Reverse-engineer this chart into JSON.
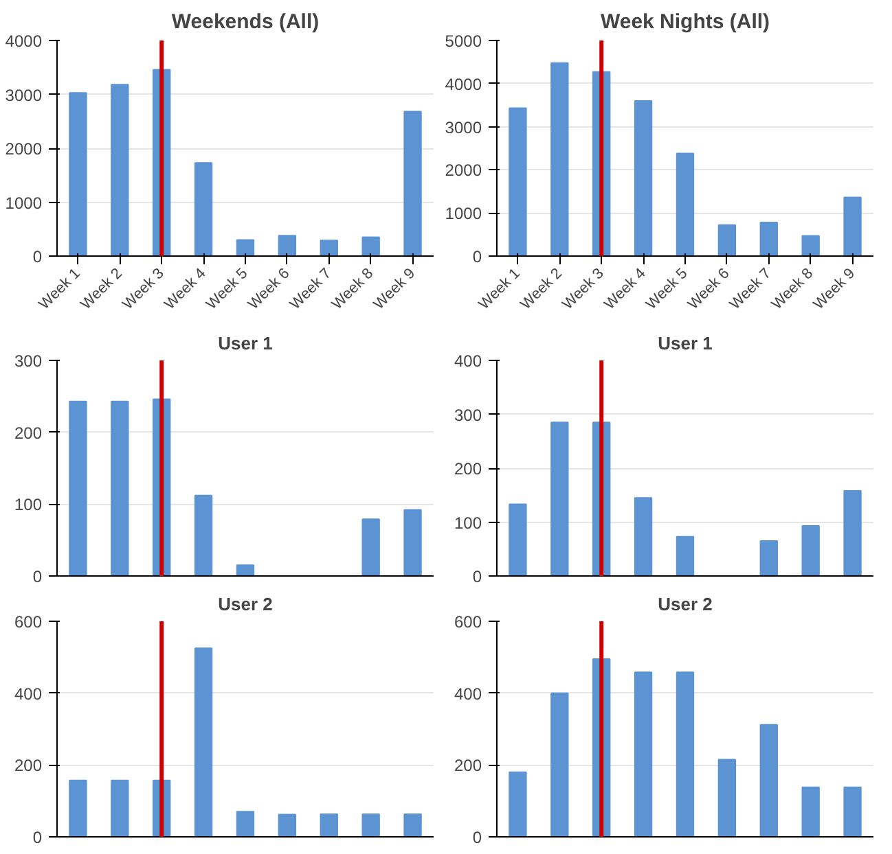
{
  "chart_data": [
    {
      "type": "bar",
      "title": "Weekends (All)",
      "categories": [
        "Week 1",
        "Week 2",
        "Week 3",
        "Week 4",
        "Week 5",
        "Week 6",
        "Week 7",
        "Week 8",
        "Week 9"
      ],
      "values": [
        3030,
        3180,
        3460,
        1730,
        300,
        380,
        290,
        350,
        2680
      ],
      "color": "#5b93d3",
      "ylim": [
        0,
        4000
      ],
      "yticks": [
        0,
        1000,
        2000,
        3000,
        4000
      ],
      "grid": "y",
      "ref_lines": [
        {
          "axis": "x",
          "value": "Week 3",
          "color": "#cc0000"
        }
      ]
    },
    {
      "type": "bar",
      "title": "Week Nights (All)",
      "categories": [
        "Week 1",
        "Week 2",
        "Week 3",
        "Week 4",
        "Week 5",
        "Week 6",
        "Week 7",
        "Week 8",
        "Week 9"
      ],
      "values": [
        3430,
        4480,
        4270,
        3600,
        2380,
        720,
        780,
        470,
        1360
      ],
      "color": "#5b93d3",
      "ylim": [
        0,
        5000
      ],
      "yticks": [
        0,
        1000,
        2000,
        3000,
        4000,
        5000
      ],
      "grid": "y",
      "ref_lines": [
        {
          "axis": "x",
          "value": "Week 3",
          "color": "#cc0000"
        }
      ]
    },
    {
      "type": "bar",
      "title": "User 1",
      "categories": [
        "Week 1",
        "Week 2",
        "Week 3",
        "Week 4",
        "Week 5",
        "Week 6",
        "Week 7",
        "Week 8",
        "Week 9"
      ],
      "values": [
        243,
        243,
        246,
        112,
        15,
        0,
        0,
        79,
        92
      ],
      "color": "#5b93d3",
      "ylim": [
        0,
        300
      ],
      "yticks": [
        0,
        100,
        200,
        300
      ],
      "grid": "y",
      "tick_labels": "y",
      "ref_lines": [
        {
          "axis": "x",
          "value": "Week 3",
          "color": "#cc0000"
        }
      ]
    },
    {
      "type": "bar",
      "title": "User 1",
      "categories": [
        "Week 1",
        "Week 2",
        "Week 3",
        "Week 4",
        "Week 5",
        "Week 6",
        "Week 7",
        "Week 8",
        "Week 9"
      ],
      "values": [
        133,
        285,
        285,
        145,
        73,
        0,
        65,
        93,
        158
      ],
      "color": "#5b93d3",
      "ylim": [
        0,
        400
      ],
      "yticks": [
        0,
        100,
        200,
        300,
        400
      ],
      "grid": "y",
      "tick_labels": "y",
      "ref_lines": [
        {
          "axis": "x",
          "value": "Week 3",
          "color": "#cc0000"
        }
      ]
    },
    {
      "type": "bar",
      "title": "User 2",
      "categories": [
        "Week 1",
        "Week 2",
        "Week 3",
        "Week 4",
        "Week 5",
        "Week 6",
        "Week 7",
        "Week 8",
        "Week 9"
      ],
      "values": [
        157,
        157,
        157,
        525,
        70,
        62,
        63,
        63,
        63
      ],
      "color": "#5b93d3",
      "ylim": [
        0,
        600
      ],
      "yticks": [
        0,
        200,
        400,
        600
      ],
      "grid": "y",
      "tick_labels": "y",
      "ref_lines": [
        {
          "axis": "x",
          "value": "Week 3",
          "color": "#cc0000"
        }
      ]
    },
    {
      "type": "bar",
      "title": "User 2",
      "categories": [
        "Week 1",
        "Week 2",
        "Week 3",
        "Week 4",
        "Week 5",
        "Week 6",
        "Week 7",
        "Week 8",
        "Week 9"
      ],
      "values": [
        180,
        400,
        495,
        458,
        458,
        215,
        312,
        138,
        138
      ],
      "color": "#5b93d3",
      "ylim": [
        0,
        600
      ],
      "yticks": [
        0,
        200,
        400,
        600
      ],
      "grid": "y",
      "tick_labels": "y",
      "ref_lines": [
        {
          "axis": "x",
          "value": "Week 3",
          "color": "#cc0000"
        }
      ]
    }
  ]
}
